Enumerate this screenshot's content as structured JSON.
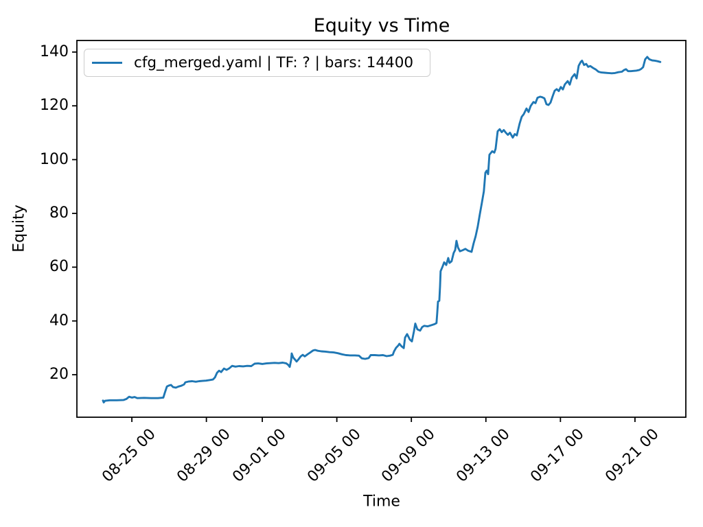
{
  "title": "Equity vs Time",
  "axes": {
    "xlabel": "Time",
    "ylabel": "Equity"
  },
  "legend": {
    "label": "cfg_merged.yaml | TF: ? | bars: 14400",
    "position": "upper left"
  },
  "colors": {
    "line": "#1f77b4",
    "axis": "#000000",
    "legend_border": "#cccccc"
  },
  "chart_data": {
    "type": "line",
    "title": "Equity vs Time",
    "xlabel": "Time",
    "ylabel": "Equity",
    "grid": false,
    "legend_position": "upper left",
    "x_unit": "days since 08-25 00:00",
    "xlim_days": [
      -2.95,
      29.73
    ],
    "ylim": [
      4.2,
      144.3
    ],
    "x_ticks": [
      {
        "d": 0,
        "label": "08-25 00"
      },
      {
        "d": 4,
        "label": "08-29 00"
      },
      {
        "d": 7,
        "label": "09-01 00"
      },
      {
        "d": 11,
        "label": "09-05 00"
      },
      {
        "d": 15,
        "label": "09-09 00"
      },
      {
        "d": 19,
        "label": "09-13 00"
      },
      {
        "d": 23,
        "label": "09-17 00"
      },
      {
        "d": 27,
        "label": "09-21 00"
      }
    ],
    "y_ticks": [
      20,
      40,
      60,
      80,
      100,
      120,
      140
    ],
    "series": [
      {
        "name": "cfg_merged.yaml | TF: ? | bars: 14400",
        "color": "#1f77b4",
        "points": [
          [
            -1.55,
            10.4
          ],
          [
            -1.51,
            9.7
          ],
          [
            -1.44,
            10.3
          ],
          [
            -1.18,
            10.5
          ],
          [
            -0.81,
            10.5
          ],
          [
            -0.44,
            10.6
          ],
          [
            -0.29,
            11.0
          ],
          [
            -0.15,
            11.8
          ],
          [
            0.0,
            11.5
          ],
          [
            0.15,
            11.7
          ],
          [
            0.29,
            11.3
          ],
          [
            0.66,
            11.4
          ],
          [
            1.03,
            11.3
          ],
          [
            1.4,
            11.3
          ],
          [
            1.69,
            11.5
          ],
          [
            1.77,
            13.3
          ],
          [
            1.88,
            15.6
          ],
          [
            1.99,
            16.0
          ],
          [
            2.1,
            16.2
          ],
          [
            2.21,
            15.4
          ],
          [
            2.36,
            15.2
          ],
          [
            2.5,
            15.6
          ],
          [
            2.65,
            15.9
          ],
          [
            2.8,
            16.4
          ],
          [
            2.87,
            17.2
          ],
          [
            3.06,
            17.5
          ],
          [
            3.24,
            17.6
          ],
          [
            3.43,
            17.4
          ],
          [
            3.61,
            17.6
          ],
          [
            3.79,
            17.7
          ],
          [
            3.98,
            17.8
          ],
          [
            4.16,
            18.0
          ],
          [
            4.35,
            18.2
          ],
          [
            4.46,
            19.0
          ],
          [
            4.57,
            20.7
          ],
          [
            4.68,
            21.5
          ],
          [
            4.79,
            21.0
          ],
          [
            4.94,
            22.3
          ],
          [
            5.08,
            21.8
          ],
          [
            5.23,
            22.4
          ],
          [
            5.38,
            23.3
          ],
          [
            5.56,
            23.0
          ],
          [
            5.75,
            23.2
          ],
          [
            5.97,
            23.1
          ],
          [
            6.19,
            23.3
          ],
          [
            6.41,
            23.2
          ],
          [
            6.59,
            24.1
          ],
          [
            6.78,
            24.2
          ],
          [
            7.0,
            24.0
          ],
          [
            7.22,
            24.2
          ],
          [
            7.44,
            24.3
          ],
          [
            7.66,
            24.4
          ],
          [
            7.88,
            24.3
          ],
          [
            8.1,
            24.5
          ],
          [
            8.29,
            24.2
          ],
          [
            8.4,
            23.6
          ],
          [
            8.47,
            22.9
          ],
          [
            8.55,
            25.5
          ],
          [
            8.58,
            27.9
          ],
          [
            8.66,
            26.4
          ],
          [
            8.77,
            25.5
          ],
          [
            8.84,
            24.9
          ],
          [
            8.95,
            25.8
          ],
          [
            9.06,
            26.8
          ],
          [
            9.17,
            27.4
          ],
          [
            9.28,
            26.8
          ],
          [
            9.43,
            27.6
          ],
          [
            9.58,
            28.3
          ],
          [
            9.72,
            29.0
          ],
          [
            9.83,
            29.2
          ],
          [
            9.98,
            28.9
          ],
          [
            10.17,
            28.7
          ],
          [
            10.39,
            28.6
          ],
          [
            10.61,
            28.4
          ],
          [
            10.83,
            28.3
          ],
          [
            11.05,
            28.0
          ],
          [
            11.27,
            27.6
          ],
          [
            11.49,
            27.3
          ],
          [
            11.71,
            27.2
          ],
          [
            11.97,
            27.2
          ],
          [
            12.19,
            27.1
          ],
          [
            12.34,
            26.1
          ],
          [
            12.52,
            25.9
          ],
          [
            12.71,
            26.2
          ],
          [
            12.82,
            27.3
          ],
          [
            13.04,
            27.3
          ],
          [
            13.26,
            27.2
          ],
          [
            13.48,
            27.3
          ],
          [
            13.67,
            26.9
          ],
          [
            13.85,
            27.1
          ],
          [
            14.0,
            27.4
          ],
          [
            14.07,
            28.7
          ],
          [
            14.18,
            30.0
          ],
          [
            14.29,
            30.8
          ],
          [
            14.36,
            31.5
          ],
          [
            14.48,
            30.5
          ],
          [
            14.59,
            29.9
          ],
          [
            14.66,
            33.8
          ],
          [
            14.77,
            35.1
          ],
          [
            14.92,
            33.1
          ],
          [
            15.03,
            32.4
          ],
          [
            15.14,
            36.2
          ],
          [
            15.21,
            39.0
          ],
          [
            15.32,
            36.9
          ],
          [
            15.47,
            36.4
          ],
          [
            15.58,
            37.7
          ],
          [
            15.69,
            38.2
          ],
          [
            15.87,
            38.0
          ],
          [
            16.06,
            38.4
          ],
          [
            16.24,
            38.8
          ],
          [
            16.35,
            39.2
          ],
          [
            16.39,
            43.0
          ],
          [
            16.43,
            47.2
          ],
          [
            16.5,
            47.5
          ],
          [
            16.54,
            53.0
          ],
          [
            16.57,
            58.5
          ],
          [
            16.65,
            59.8
          ],
          [
            16.76,
            61.8
          ],
          [
            16.87,
            60.8
          ],
          [
            16.98,
            63.4
          ],
          [
            17.05,
            61.6
          ],
          [
            17.16,
            62.2
          ],
          [
            17.27,
            65.3
          ],
          [
            17.35,
            66.4
          ],
          [
            17.42,
            69.8
          ],
          [
            17.5,
            67.3
          ],
          [
            17.61,
            65.9
          ],
          [
            17.75,
            66.3
          ],
          [
            17.9,
            66.8
          ],
          [
            18.05,
            66.1
          ],
          [
            18.23,
            65.7
          ],
          [
            18.34,
            68.9
          ],
          [
            18.45,
            71.5
          ],
          [
            18.56,
            75.0
          ],
          [
            18.67,
            79.5
          ],
          [
            18.78,
            83.8
          ],
          [
            18.89,
            88.2
          ],
          [
            18.97,
            95.1
          ],
          [
            19.04,
            95.9
          ],
          [
            19.12,
            94.6
          ],
          [
            19.19,
            101.8
          ],
          [
            19.34,
            103.1
          ],
          [
            19.45,
            102.6
          ],
          [
            19.52,
            104.0
          ],
          [
            19.63,
            110.5
          ],
          [
            19.74,
            111.3
          ],
          [
            19.85,
            110.2
          ],
          [
            19.96,
            111.0
          ],
          [
            20.07,
            110.0
          ],
          [
            20.18,
            109.2
          ],
          [
            20.29,
            110.0
          ],
          [
            20.44,
            108.2
          ],
          [
            20.55,
            109.5
          ],
          [
            20.66,
            109.0
          ],
          [
            20.81,
            113.4
          ],
          [
            20.92,
            115.9
          ],
          [
            21.03,
            116.9
          ],
          [
            21.18,
            119.0
          ],
          [
            21.29,
            117.7
          ],
          [
            21.4,
            119.9
          ],
          [
            21.55,
            121.4
          ],
          [
            21.66,
            121.0
          ],
          [
            21.77,
            123.0
          ],
          [
            21.91,
            123.4
          ],
          [
            22.02,
            123.2
          ],
          [
            22.14,
            122.8
          ],
          [
            22.25,
            120.6
          ],
          [
            22.36,
            120.3
          ],
          [
            22.47,
            121.2
          ],
          [
            22.58,
            123.5
          ],
          [
            22.69,
            125.6
          ],
          [
            22.8,
            126.2
          ],
          [
            22.91,
            125.5
          ],
          [
            23.02,
            127.0
          ],
          [
            23.13,
            126.1
          ],
          [
            23.24,
            128.0
          ],
          [
            23.39,
            129.2
          ],
          [
            23.5,
            127.9
          ],
          [
            23.61,
            130.5
          ],
          [
            23.76,
            131.8
          ],
          [
            23.87,
            130.2
          ],
          [
            23.98,
            134.9
          ],
          [
            24.09,
            136.3
          ],
          [
            24.16,
            136.8
          ],
          [
            24.27,
            135.2
          ],
          [
            24.38,
            135.6
          ],
          [
            24.49,
            134.5
          ],
          [
            24.6,
            134.8
          ],
          [
            24.75,
            134.1
          ],
          [
            24.9,
            133.5
          ],
          [
            25.04,
            132.7
          ],
          [
            25.19,
            132.4
          ],
          [
            25.38,
            132.3
          ],
          [
            25.56,
            132.2
          ],
          [
            25.75,
            132.1
          ],
          [
            25.93,
            132.2
          ],
          [
            26.11,
            132.5
          ],
          [
            26.3,
            132.7
          ],
          [
            26.41,
            133.3
          ],
          [
            26.52,
            133.6
          ],
          [
            26.63,
            132.9
          ],
          [
            26.78,
            132.9
          ],
          [
            26.92,
            133.0
          ],
          [
            27.07,
            133.1
          ],
          [
            27.22,
            133.3
          ],
          [
            27.33,
            133.7
          ],
          [
            27.44,
            134.4
          ],
          [
            27.55,
            137.3
          ],
          [
            27.66,
            138.2
          ],
          [
            27.77,
            137.3
          ],
          [
            27.92,
            136.9
          ],
          [
            28.07,
            136.8
          ],
          [
            28.21,
            136.6
          ],
          [
            28.36,
            136.3
          ]
        ]
      }
    ]
  }
}
